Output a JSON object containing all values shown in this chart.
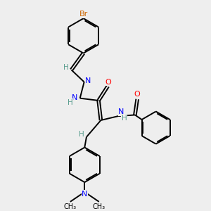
{
  "bg_color": "#eeeeee",
  "bond_color": "#000000",
  "bond_width": 1.4,
  "atom_colors": {
    "N": "#0000ff",
    "O": "#ff0000",
    "Br": "#cc6600",
    "C": "#000000",
    "H": "#5a9e8f"
  }
}
